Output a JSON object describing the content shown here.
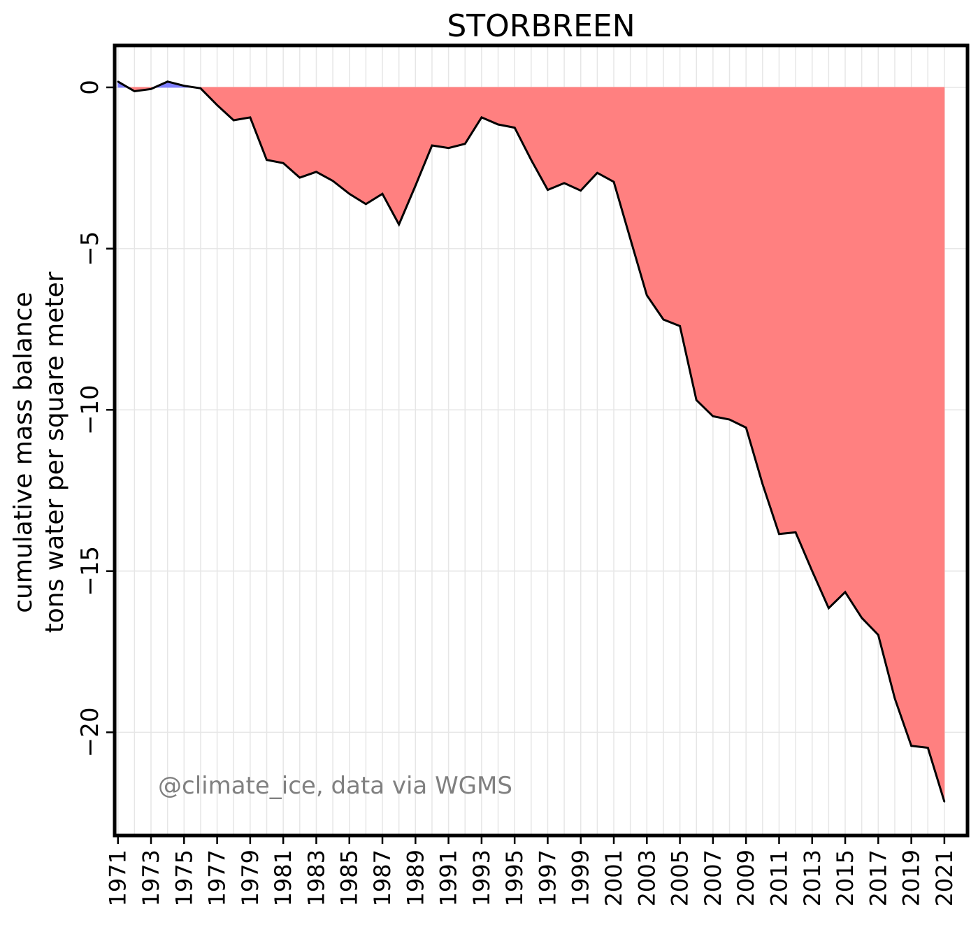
{
  "chart_data": {
    "type": "area",
    "title": "STORBREEN",
    "ylabel_lines": [
      "cumulative mass balance",
      "tons water per square meter"
    ],
    "xlabel": "",
    "x_ticks": [
      1971,
      1973,
      1975,
      1977,
      1979,
      1981,
      1983,
      1985,
      1987,
      1989,
      1991,
      1993,
      1995,
      1997,
      1999,
      2001,
      2003,
      2005,
      2007,
      2009,
      2011,
      2013,
      2015,
      2017,
      2019,
      2021
    ],
    "y_ticks": [
      0,
      -5,
      -10,
      -15,
      -20
    ],
    "y_tick_labels": [
      "0",
      "−5",
      "−10",
      "−15",
      "−20"
    ],
    "xlim": [
      1970.8,
      2022.4
    ],
    "ylim": [
      -23.2,
      1.3
    ],
    "grid": true,
    "colors": {
      "positive_fill": "#8080ff",
      "negative_fill": "#ff8080",
      "line": "#000000",
      "grid": "#e6e6e6",
      "watermark": "#808080"
    },
    "annotation": "@climate_ice, data via WGMS",
    "series": [
      {
        "x": [
          1971,
          1972,
          1973,
          1974,
          1975,
          1976,
          1977,
          1978,
          1979,
          1980,
          1981,
          1982,
          1983,
          1984,
          1985,
          1986,
          1987,
          1988,
          1989,
          1990,
          1991,
          1992,
          1993,
          1994,
          1995,
          1996,
          1997,
          1998,
          1999,
          2000,
          2001,
          2002,
          2003,
          2004,
          2005,
          2006,
          2007,
          2008,
          2009,
          2010,
          2011,
          2012,
          2013,
          2014,
          2015,
          2016,
          2017,
          2018,
          2019,
          2020,
          2021
        ],
        "values": [
          0.18,
          -0.12,
          -0.05,
          0.18,
          0.05,
          -0.03,
          -0.55,
          -1.02,
          -0.93,
          -2.25,
          -2.35,
          -2.8,
          -2.62,
          -2.9,
          -3.3,
          -3.62,
          -3.3,
          -4.25,
          -3.05,
          -1.8,
          -1.88,
          -1.75,
          -0.93,
          -1.15,
          -1.25,
          -2.25,
          -3.18,
          -2.97,
          -3.2,
          -2.65,
          -2.93,
          -4.7,
          -6.45,
          -7.2,
          -7.4,
          -9.7,
          -10.2,
          -10.3,
          -10.55,
          -12.3,
          -13.85,
          -13.8,
          -15.0,
          -16.15,
          -15.65,
          -16.45,
          -16.98,
          -18.95,
          -20.42,
          -20.48,
          -22.15
        ]
      }
    ]
  }
}
